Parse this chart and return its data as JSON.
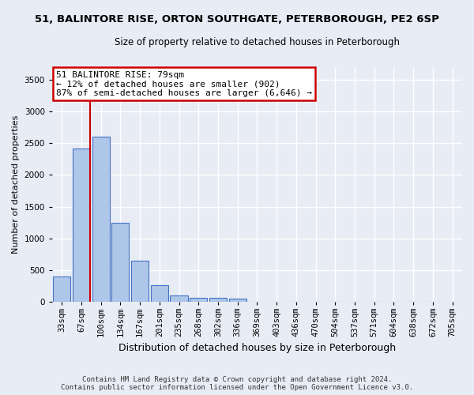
{
  "title_line1": "51, BALINTORE RISE, ORTON SOUTHGATE, PETERBOROUGH, PE2 6SP",
  "title_line2": "Size of property relative to detached houses in Peterborough",
  "xlabel": "Distribution of detached houses by size in Peterborough",
  "ylabel": "Number of detached properties",
  "categories": [
    "33sqm",
    "67sqm",
    "100sqm",
    "134sqm",
    "167sqm",
    "201sqm",
    "235sqm",
    "268sqm",
    "302sqm",
    "336sqm",
    "369sqm",
    "403sqm",
    "436sqm",
    "470sqm",
    "504sqm",
    "537sqm",
    "571sqm",
    "604sqm",
    "638sqm",
    "672sqm",
    "705sqm"
  ],
  "values": [
    390,
    2420,
    2600,
    1240,
    640,
    255,
    100,
    60,
    55,
    45,
    0,
    0,
    0,
    0,
    0,
    0,
    0,
    0,
    0,
    0,
    0
  ],
  "bar_color": "#aec6e8",
  "bar_edge_color": "#4472c4",
  "vline_position": 1.45,
  "vline_color": "#cc0000",
  "ylim_max": 3700,
  "yticks": [
    0,
    500,
    1000,
    1500,
    2000,
    2500,
    3000,
    3500
  ],
  "annotation_text": "51 BALINTORE RISE: 79sqm\n← 12% of detached houses are smaller (902)\n87% of semi-detached houses are larger (6,646) →",
  "annotation_color": "#cc0000",
  "footnote_line1": "Contains HM Land Registry data © Crown copyright and database right 2024.",
  "footnote_line2": "Contains public sector information licensed under the Open Government Licence v3.0.",
  "bg_color": "#e8ecf5",
  "grid_color": "#ffffff",
  "title1_fontsize": 9.5,
  "title2_fontsize": 8.5,
  "tick_fontsize": 7.5,
  "ylabel_fontsize": 8,
  "xlabel_fontsize": 9
}
